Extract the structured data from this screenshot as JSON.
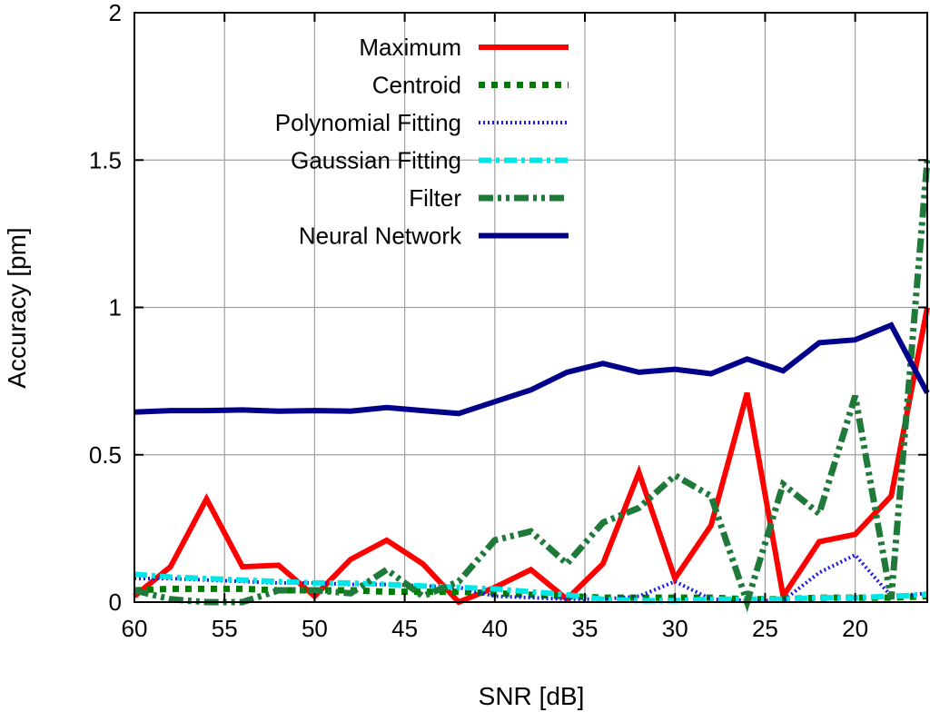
{
  "chart_data": {
    "type": "line",
    "title": "",
    "xlabel": "SNR [dB]",
    "ylabel": "Accuracy [pm]",
    "xlim": [
      60,
      16
    ],
    "ylim": [
      0,
      2
    ],
    "x_reversed": true,
    "xticks": [
      60,
      55,
      50,
      45,
      40,
      35,
      30,
      25,
      20
    ],
    "xtick_labels": [
      "60",
      "55",
      "50",
      "45",
      "40",
      "35",
      "30",
      "25",
      "20"
    ],
    "yticks": [
      0,
      0.5,
      1,
      1.5,
      2
    ],
    "ytick_labels": [
      "0",
      "0.5",
      "1",
      "1.5",
      "2"
    ],
    "grid": true,
    "legend_position": "top-center",
    "x": [
      60,
      58,
      56,
      54,
      52,
      50,
      48,
      46,
      44,
      42,
      40,
      38,
      36,
      34,
      32,
      30,
      28,
      26,
      24,
      22,
      20,
      18,
      16
    ],
    "series": [
      {
        "name": "Maximum",
        "color": "#ff0000",
        "dash": "solid",
        "values": [
          0.02,
          0.12,
          0.35,
          0.12,
          0.125,
          0.02,
          0.145,
          0.21,
          0.13,
          0.0,
          0.05,
          0.11,
          0.01,
          0.13,
          0.44,
          0.08,
          0.26,
          0.71,
          0.02,
          0.205,
          0.23,
          0.36,
          1.0
        ]
      },
      {
        "name": "Centroid",
        "color": "#007a00",
        "dash": "dotted",
        "values": [
          0.04,
          0.045,
          0.045,
          0.045,
          0.04,
          0.04,
          0.04,
          0.035,
          0.035,
          0.035,
          0.03,
          0.025,
          0.02,
          0.015,
          0.015,
          0.015,
          0.015,
          0.01,
          0.01,
          0.015,
          0.015,
          0.015,
          0.02
        ]
      },
      {
        "name": "Polynomial Fitting",
        "color": "#1a1ae6",
        "dash": "fine",
        "values": [
          0.08,
          0.08,
          0.075,
          0.07,
          0.065,
          0.065,
          0.06,
          0.06,
          0.055,
          0.05,
          0.02,
          0.015,
          0.01,
          0.01,
          0.02,
          0.07,
          0.01,
          0.005,
          0.005,
          0.1,
          0.16,
          0.02,
          0.03
        ]
      },
      {
        "name": "Gaussian Fitting",
        "color": "#00e6e6",
        "dash": "dashdot",
        "values": [
          0.095,
          0.085,
          0.08,
          0.075,
          0.07,
          0.065,
          0.065,
          0.06,
          0.055,
          0.05,
          0.045,
          0.035,
          0.025,
          0.01,
          0.005,
          0.005,
          0.01,
          0.01,
          0.01,
          0.015,
          0.015,
          0.02,
          0.025
        ]
      },
      {
        "name": "Filter",
        "color": "#1f7a3a",
        "dash": "dashdotdot",
        "values": [
          0.04,
          0.01,
          0.0,
          0.0,
          0.04,
          0.04,
          0.03,
          0.11,
          0.02,
          0.07,
          0.21,
          0.24,
          0.13,
          0.27,
          0.32,
          0.43,
          0.36,
          0.0,
          0.4,
          0.3,
          0.7,
          0.01,
          1.5
        ]
      },
      {
        "name": "Neural Network",
        "color": "#00008b",
        "dash": "solid",
        "values": [
          0.645,
          0.65,
          0.65,
          0.652,
          0.648,
          0.65,
          0.648,
          0.66,
          0.65,
          0.64,
          0.68,
          0.72,
          0.78,
          0.81,
          0.78,
          0.79,
          0.775,
          0.825,
          0.785,
          0.88,
          0.89,
          0.94,
          0.71
        ]
      }
    ]
  }
}
